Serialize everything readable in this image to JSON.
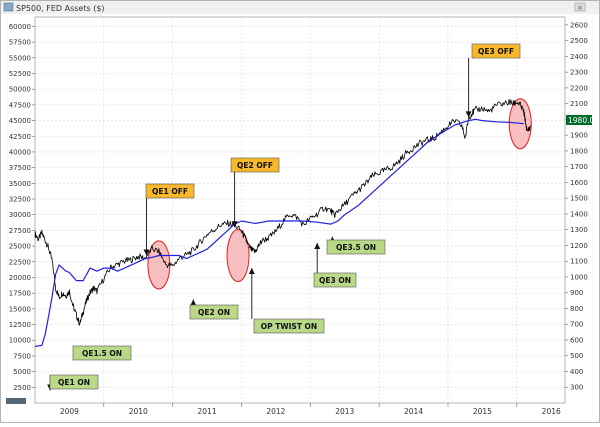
{
  "window_title": "SP500, FED Assets ($)",
  "price_tag": "1980.0",
  "colors": {
    "background": "#ffffff",
    "border": "#b4b4b4",
    "grid": "#d8d8d8",
    "sp500": "#000000",
    "fed_assets": "#2222dd",
    "callout_off": "#f7b92b",
    "callout_on": "#b9d988",
    "highlight_fill": "#f4aaaa",
    "highlight_stroke": "#dd2222",
    "price_tag_bg": "#006a2a",
    "price_tag_text": "#ffffff"
  },
  "chart_data": {
    "type": "line",
    "title": "SP500, FED Assets ($)",
    "x_ticks": [
      "2009",
      "2010",
      "2011",
      "2012",
      "2013",
      "2014",
      "2015",
      "2016"
    ],
    "x_range": [
      2008.5,
      2016.2
    ],
    "left_axis": {
      "ticks": [
        "2500",
        "5000",
        "7500",
        "10000",
        "12500",
        "15000",
        "17500",
        "20000",
        "22500",
        "25000",
        "27500",
        "30000",
        "32500",
        "35000",
        "37500",
        "40000",
        "42500",
        "45000",
        "47500",
        "50000",
        "52500",
        "55000",
        "57500",
        "60000"
      ],
      "range": [
        0,
        61500
      ]
    },
    "right_axis": {
      "ticks": [
        "300",
        "400",
        "500",
        "600",
        "700",
        "800",
        "900",
        "1000",
        "1100",
        "1200",
        "1300",
        "1400",
        "1500",
        "1600",
        "1700",
        "1800",
        "1900",
        "2000",
        "2100",
        "2200",
        "2300",
        "2400",
        "2500",
        "2600"
      ],
      "range": [
        200,
        2650
      ]
    },
    "grid": true,
    "series": [
      {
        "key": "sp500",
        "axis": "right",
        "x": [
          2008.5,
          2008.55,
          2008.6,
          2008.65,
          2008.7,
          2008.75,
          2008.8,
          2008.85,
          2008.9,
          2008.95,
          2009.0,
          2009.05,
          2009.1,
          2009.15,
          2009.2,
          2009.25,
          2009.3,
          2009.35,
          2009.4,
          2009.5,
          2009.6,
          2009.7,
          2009.8,
          2009.9,
          2010.0,
          2010.1,
          2010.2,
          2010.3,
          2010.4,
          2010.5,
          2010.6,
          2010.7,
          2010.8,
          2010.9,
          2011.0,
          2011.1,
          2011.2,
          2011.3,
          2011.4,
          2011.5,
          2011.55,
          2011.6,
          2011.65,
          2011.7,
          2011.75,
          2011.8,
          2011.9,
          2012.0,
          2012.1,
          2012.2,
          2012.3,
          2012.4,
          2012.5,
          2012.6,
          2012.7,
          2012.8,
          2012.85,
          2012.9,
          2013.0,
          2013.1,
          2013.2,
          2013.3,
          2013.4,
          2013.5,
          2013.6,
          2013.7,
          2013.8,
          2013.9,
          2014.0,
          2014.1,
          2014.2,
          2014.3,
          2014.4,
          2014.5,
          2014.6,
          2014.7,
          2014.75,
          2014.8,
          2014.85,
          2014.9,
          2015.0,
          2015.1,
          2015.2,
          2015.3,
          2015.4,
          2015.45,
          2015.5,
          2015.55,
          2015.6,
          2015.62,
          2015.65,
          2015.7
        ],
        "values": [
          1275,
          1240,
          1280,
          1230,
          1180,
          1100,
          930,
          870,
          900,
          880,
          910,
          820,
          760,
          700,
          780,
          850,
          900,
          930,
          910,
          990,
          1060,
          1080,
          1100,
          1110,
          1130,
          1120,
          1180,
          1160,
          1080,
          1070,
          1120,
          1140,
          1170,
          1220,
          1270,
          1300,
          1330,
          1340,
          1330,
          1290,
          1250,
          1200,
          1170,
          1160,
          1200,
          1230,
          1250,
          1290,
          1350,
          1400,
          1380,
          1330,
          1370,
          1400,
          1440,
          1420,
          1390,
          1420,
          1460,
          1510,
          1550,
          1590,
          1640,
          1660,
          1680,
          1700,
          1740,
          1790,
          1820,
          1850,
          1870,
          1880,
          1920,
          1960,
          1990,
          1960,
          1880,
          2010,
          2040,
          2060,
          2070,
          2050,
          2090,
          2100,
          2110,
          2100,
          2110,
          2090,
          2050,
          2000,
          1920,
          1960
        ]
      },
      {
        "key": "fed_assets",
        "axis": "left",
        "x": [
          2008.5,
          2008.6,
          2008.65,
          2008.7,
          2008.75,
          2008.8,
          2008.85,
          2008.9,
          2008.95,
          2009.0,
          2009.1,
          2009.2,
          2009.3,
          2009.4,
          2009.5,
          2009.6,
          2009.7,
          2009.8,
          2009.9,
          2010.0,
          2010.1,
          2010.2,
          2010.3,
          2010.4,
          2010.5,
          2010.6,
          2010.7,
          2010.8,
          2010.9,
          2011.0,
          2011.1,
          2011.2,
          2011.3,
          2011.4,
          2011.5,
          2011.6,
          2011.7,
          2011.8,
          2011.9,
          2012.0,
          2012.2,
          2012.4,
          2012.6,
          2012.8,
          2012.9,
          2013.0,
          2013.2,
          2013.4,
          2013.6,
          2013.8,
          2014.0,
          2014.2,
          2014.4,
          2014.6,
          2014.8,
          2014.9,
          2015.0,
          2015.2,
          2015.4,
          2015.6
        ],
        "values": [
          9000,
          9200,
          11000,
          14000,
          17000,
          20500,
          22000,
          21500,
          21000,
          20800,
          19500,
          19500,
          21500,
          21000,
          21500,
          21500,
          21000,
          21500,
          22000,
          22500,
          23000,
          23200,
          23500,
          23500,
          23500,
          23500,
          23000,
          23500,
          24000,
          24500,
          25500,
          26500,
          27500,
          28500,
          29000,
          28800,
          28600,
          28800,
          29000,
          29000,
          29000,
          29000,
          28800,
          28500,
          29000,
          30000,
          31500,
          33500,
          35500,
          37500,
          39500,
          41500,
          43000,
          44300,
          45000,
          45200,
          45000,
          44800,
          44700,
          44500
        ]
      }
    ],
    "annotations": [
      {
        "label": "QE1 ON",
        "type": "on",
        "x": 2008.72,
        "y": 2000
      },
      {
        "label": "QE1.5 ON",
        "type": "on",
        "x": 2009.1,
        "y": 7000
      },
      {
        "label": "QE1 OFF",
        "type": "off",
        "x": 2010.12,
        "y": 23500
      },
      {
        "label": "QE2 ON",
        "type": "on",
        "x": 2010.8,
        "y": 16500
      },
      {
        "label": "QE2 OFF",
        "type": "off",
        "x": 2011.4,
        "y": 28000
      },
      {
        "label": "OP TWIST ON",
        "type": "on",
        "x": 2011.65,
        "y": 21500
      },
      {
        "label": "QE3 ON",
        "type": "on",
        "x": 2012.6,
        "y": 25500
      },
      {
        "label": "QE3.5 ON",
        "type": "on",
        "x": 2012.82,
        "y": 26500
      },
      {
        "label": "QE3 OFF",
        "type": "off",
        "x": 2014.8,
        "y": 45500
      }
    ],
    "highlights": [
      {
        "x": 2010.3,
        "y": 22000
      },
      {
        "x": 2011.45,
        "y": 23500
      },
      {
        "x": 2015.55,
        "y": 44500
      }
    ]
  }
}
